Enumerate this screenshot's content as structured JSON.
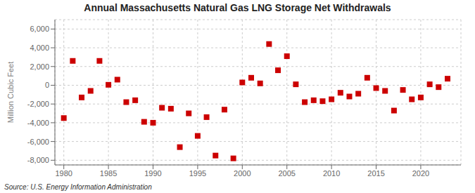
{
  "chart_data": {
    "type": "scatter",
    "title": "Annual Massachusetts Natural Gas LNG Storage Net Withdrawals",
    "y_label": "Million Cubic Feet",
    "source": "Source: U.S. Energy Information Administration",
    "color": "#cc0000",
    "marker": "square",
    "grid": true,
    "xlim": [
      1979,
      2024.5
    ],
    "ylim": [
      -8500,
      7000
    ],
    "xticks": [
      1980,
      1985,
      1990,
      1995,
      2000,
      2005,
      2010,
      2015,
      2020
    ],
    "yticks": [
      {
        "value": -8000,
        "label": "-8,000"
      },
      {
        "value": -6000,
        "label": "-6,000"
      },
      {
        "value": -4000,
        "label": "-4,000"
      },
      {
        "value": -2000,
        "label": "-2,000"
      },
      0,
      {
        "value": 2000,
        "label": "2,000"
      },
      {
        "value": 4000,
        "label": "4,000"
      },
      {
        "value": 6000,
        "label": "6,000"
      }
    ],
    "x": [
      1980,
      1981,
      1982,
      1983,
      1984,
      1985,
      1986,
      1987,
      1988,
      1989,
      1990,
      1991,
      1992,
      1993,
      1994,
      1995,
      1996,
      1997,
      1998,
      1999,
      2000,
      2001,
      2002,
      2003,
      2004,
      2005,
      2006,
      2007,
      2008,
      2009,
      2010,
      2011,
      2012,
      2013,
      2014,
      2015,
      2016,
      2017,
      2018,
      2019,
      2020,
      2021,
      2022,
      2023
    ],
    "values": [
      -3500,
      2600,
      -1300,
      -600,
      2600,
      50,
      600,
      -1800,
      -1600,
      -3900,
      -4000,
      -2400,
      -2500,
      -6600,
      -3000,
      -5400,
      -3400,
      -7500,
      -2600,
      -7800,
      300,
      800,
      200,
      4400,
      1600,
      3100,
      100,
      -1800,
      -1600,
      -1700,
      -1500,
      -800,
      -1200,
      -900,
      800,
      -300,
      -600,
      -2700,
      -500,
      -1500,
      -1300,
      100,
      -200,
      700
    ]
  }
}
